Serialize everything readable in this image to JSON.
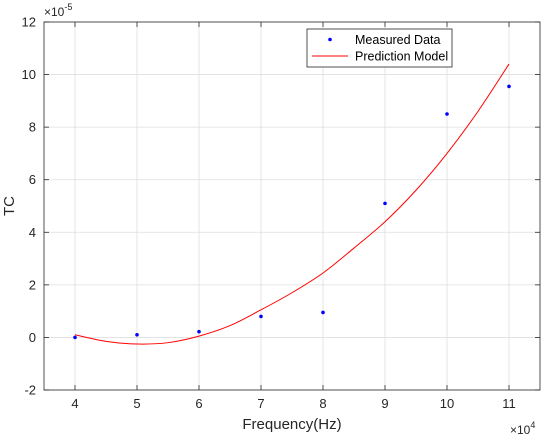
{
  "chart_data": {
    "type": "scatter",
    "xlabel": "Frequency(Hz)",
    "ylabel": "TC",
    "x_multiplier": "×10",
    "x_exponent": "4",
    "y_multiplier": "×10",
    "y_exponent": "-5",
    "xlim": [
      3.5,
      11.5
    ],
    "ylim": [
      -2,
      12
    ],
    "xticks": [
      "4",
      "5",
      "6",
      "7",
      "8",
      "9",
      "10",
      "11"
    ],
    "yticks": [
      "-2",
      "0",
      "2",
      "4",
      "6",
      "8",
      "10",
      "12"
    ],
    "grid": true,
    "legend_position": "top-right",
    "series": [
      {
        "name": "Measured Data",
        "kind": "markers",
        "color": "#0000ff",
        "x": [
          4,
          5,
          6,
          7,
          8,
          9,
          10,
          11
        ],
        "y": [
          0.0,
          0.1,
          0.22,
          0.8,
          0.95,
          5.1,
          8.5,
          9.55
        ]
      },
      {
        "name": "Prediction Model",
        "kind": "line",
        "color": "#ff0000",
        "x": [
          4,
          4.5,
          5,
          5.5,
          6,
          6.5,
          7,
          7.5,
          8,
          8.5,
          9,
          9.5,
          10,
          10.5,
          11
        ],
        "y": [
          0.1,
          -0.15,
          -0.25,
          -0.2,
          0.05,
          0.45,
          1.05,
          1.7,
          2.45,
          3.4,
          4.4,
          5.6,
          7.0,
          8.6,
          10.4
        ]
      }
    ]
  }
}
